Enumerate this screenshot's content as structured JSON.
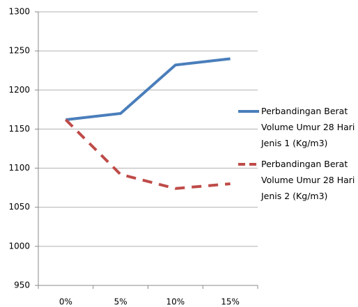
{
  "chart_data": {
    "type": "line",
    "categories": [
      "0%",
      "5%",
      "10%",
      "15%"
    ],
    "series": [
      {
        "name": "Perbandingan Berat Volume Umur 28 Hari Jenis 1 (Kg/m3)",
        "color": "#4a7ebb",
        "line_style": "solid",
        "values": [
          1162,
          1170,
          1232,
          1240
        ]
      },
      {
        "name": "Perbandingan Berat Volume Umur 28 Hari Jenis 2 (Kg/m3)",
        "color": "#be4b48",
        "line_style": "dashed",
        "values": [
          1162,
          1092,
          1074,
          1080
        ]
      }
    ],
    "ylim": [
      950,
      1300
    ],
    "yticks": [
      950,
      1000,
      1050,
      1100,
      1150,
      1200,
      1250,
      1300
    ],
    "grid": true,
    "legend": "right"
  }
}
